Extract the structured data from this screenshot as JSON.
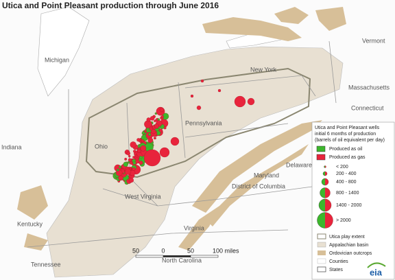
{
  "title": "Utica and Point Pleasant production through June 2016",
  "map": {
    "labels": [
      "Michigan",
      "New York",
      "Vermont",
      "Massachusetts",
      "Connecticut",
      "Pennsylvania",
      "Ohio",
      "Indiana",
      "West Virginia",
      "Maryland",
      "Delaware",
      "District of Columbia",
      "Kentucky",
      "Virginia",
      "Tennessee",
      "North Carolina"
    ]
  },
  "scale_bar": {
    "ticks": [
      "50",
      "0",
      "50",
      "100 miles"
    ]
  },
  "legend": {
    "heading": [
      "Utica and Point Pleasant wells",
      "initial 6 months of production",
      "(barrels of oil equivalent per day)"
    ],
    "symbols": [
      "Produced as oil",
      "Produced as gas"
    ],
    "size_classes": [
      "< 200",
      "200 - 400",
      "400 - 800",
      "800 - 1400",
      "1400 - 2000",
      "> 2000"
    ],
    "layers": [
      "Utica play extent",
      "Appalachian basin",
      "Ordovician outcrops",
      "Counties",
      "States"
    ]
  },
  "logo": "eia"
}
